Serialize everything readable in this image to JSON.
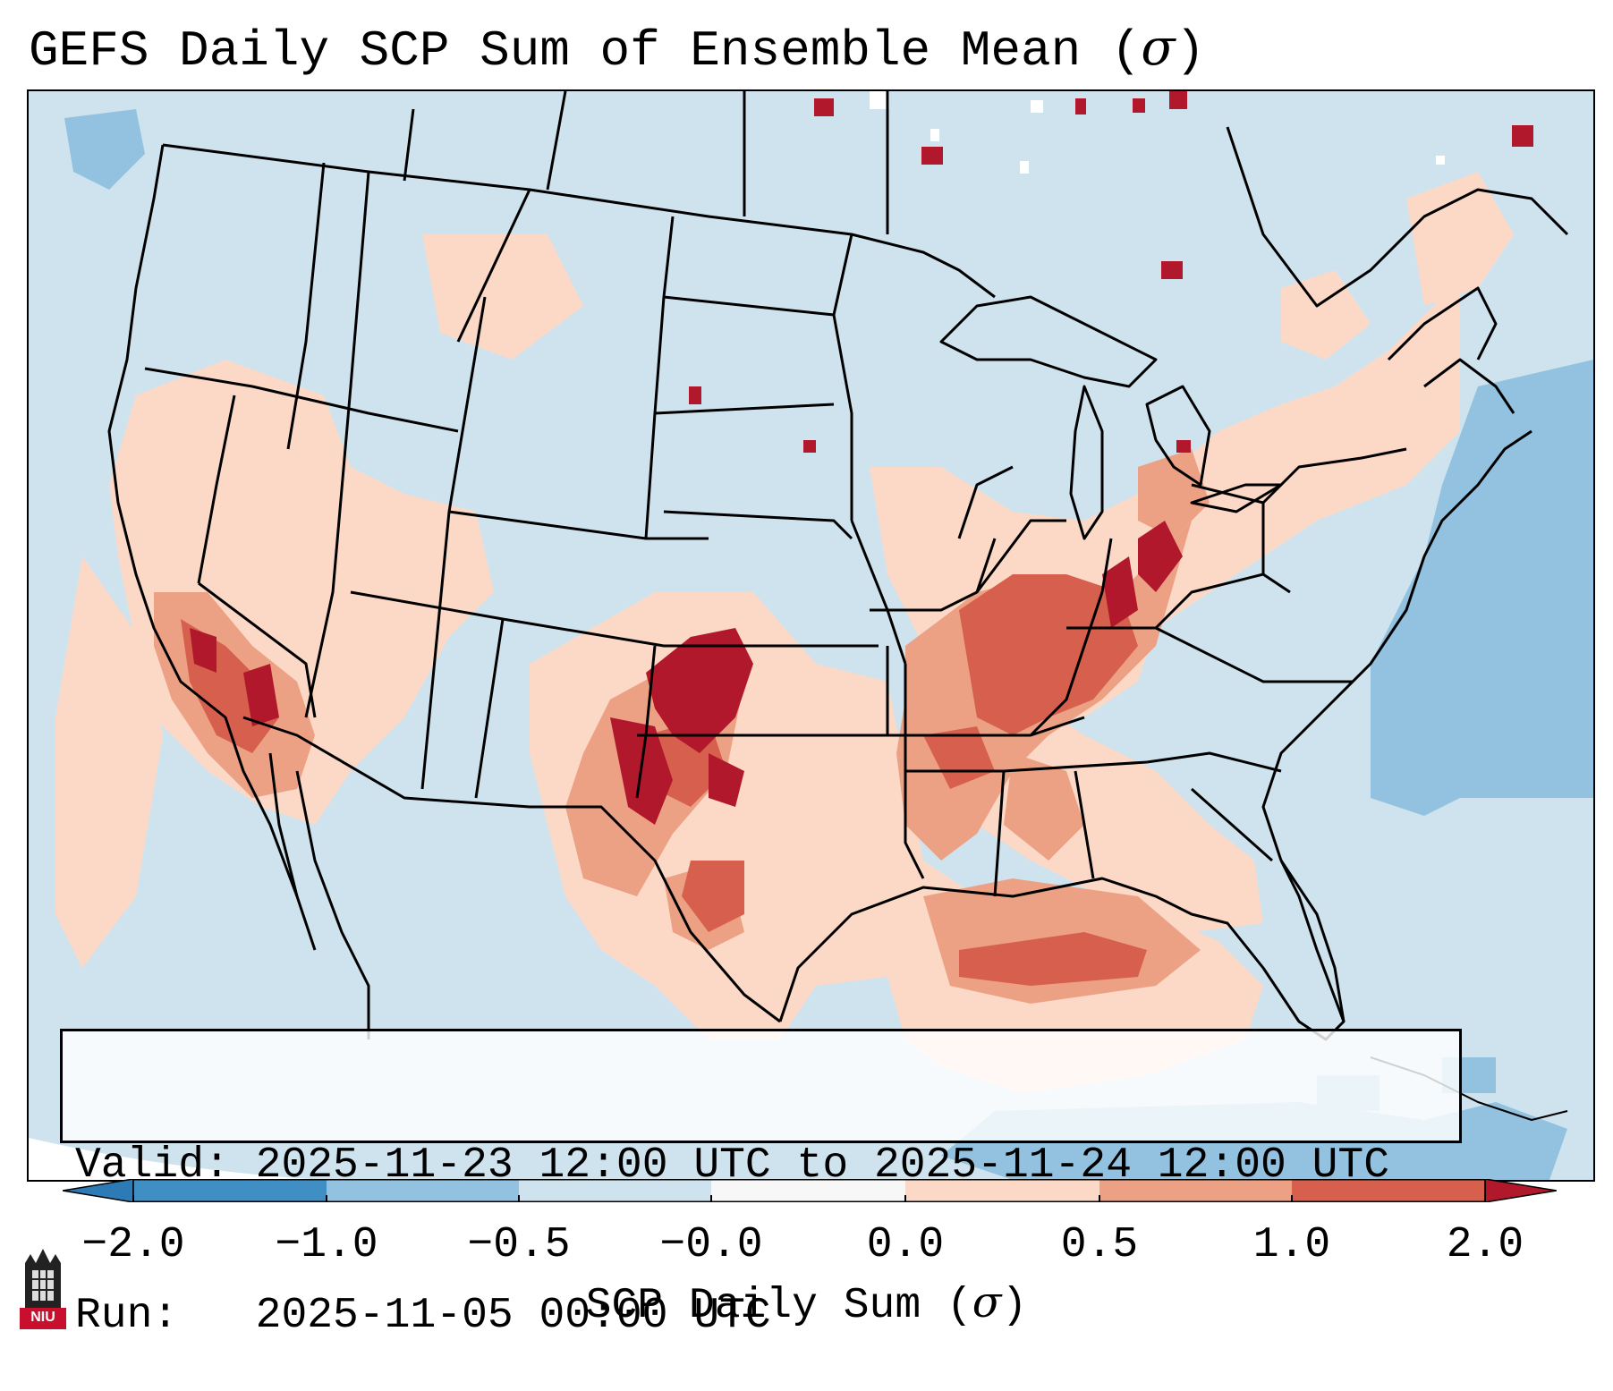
{
  "title": "GEFS Daily SCP Sum of Ensemble Mean (σ)",
  "title_parts": {
    "main": "GEFS Daily SCP Sum of Ensemble Mean (",
    "symbol": "σ",
    "close": ")"
  },
  "info_box": {
    "valid_line": "Valid: 2025-11-23 12:00 UTC to 2025-11-24 12:00 UTC",
    "run_line": "Run:   2025-11-05 00:00 UTC"
  },
  "colorbar": {
    "ticks": [
      "−2.0",
      "−1.0",
      "−0.5",
      "−0.0",
      "0.0",
      "0.5",
      "1.0",
      "2.0"
    ],
    "label_main": "SCP Daily Sum (",
    "label_symbol": "σ",
    "label_close": ")",
    "bins": [
      {
        "range": "< -2.0",
        "color": "#2c7bb6"
      },
      {
        "range": "-2.0 to -1.0",
        "color": "#3f8fc5"
      },
      {
        "range": "-1.0 to -0.5",
        "color": "#92c2df"
      },
      {
        "range": "-0.5 to -0.0",
        "color": "#cfe3ef"
      },
      {
        "range": "-0.0 to 0.0",
        "color": "#f7f7f7"
      },
      {
        "range": "0.0 to 0.5",
        "color": "#fbd9c6"
      },
      {
        "range": "0.5 to 1.0",
        "color": "#eda184"
      },
      {
        "range": "1.0 to 2.0",
        "color": "#d6604d"
      },
      {
        "range": "> 2.0",
        "color": "#b2182b"
      }
    ]
  },
  "logo": {
    "text": "NIU",
    "color": "#c8102e"
  },
  "colors": {
    "ocean_neutral": "#cfe3ef",
    "light_blue": "#92c2df",
    "light_red": "#fbd9c6",
    "mid_red": "#eda184",
    "strong_red": "#d6604d",
    "dark_red": "#b2182b",
    "white": "#f7f7f7"
  }
}
